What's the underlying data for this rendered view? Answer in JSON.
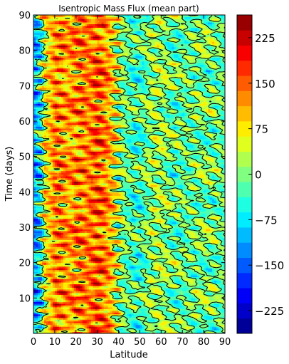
{
  "chart_data": {
    "type": "heatmap",
    "title": "Isentropic Mass Flux (mean part)",
    "xlabel": "Latitude",
    "ylabel": "Time (days)",
    "xlim": [
      0,
      90
    ],
    "ylim": [
      0,
      90
    ],
    "x_ticks": [
      0,
      10,
      20,
      30,
      40,
      50,
      60,
      70,
      80,
      90
    ],
    "y_ticks": [
      10,
      20,
      30,
      40,
      50,
      60,
      70,
      80,
      90
    ],
    "colormap": "jet",
    "color_range": [
      -262.5,
      262.5
    ],
    "color_levels": 21,
    "colorbar_ticks": [
      225,
      150,
      75,
      0,
      -75,
      -150,
      -225
    ],
    "contour_level": 0,
    "contour_color": "#000000",
    "grid": false,
    "legend": "none",
    "colorbar_position": "right",
    "field_description": {
      "latitudes": [
        0,
        5,
        10,
        15,
        20,
        25,
        30,
        35,
        40,
        45,
        50,
        55,
        60,
        65,
        70,
        75,
        80,
        85,
        90
      ],
      "typical_mean_values": [
        -60,
        40,
        130,
        110,
        120,
        130,
        150,
        120,
        20,
        -20,
        -30,
        10,
        20,
        -10,
        -10,
        -5,
        0,
        -5,
        -10
      ]
    }
  }
}
